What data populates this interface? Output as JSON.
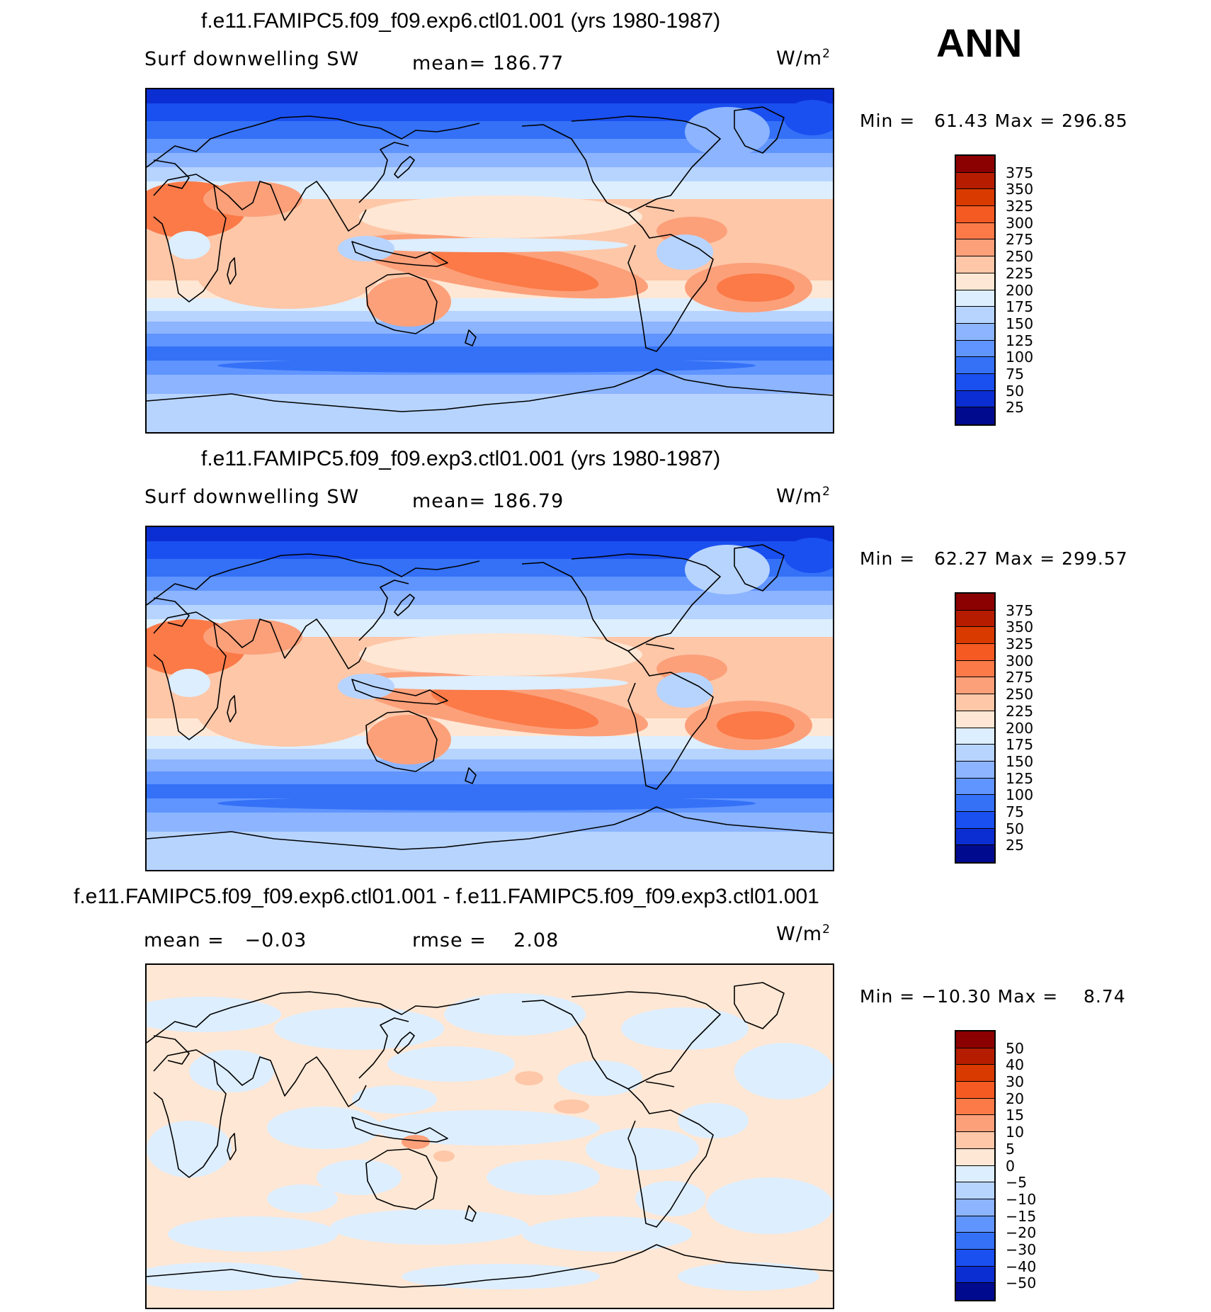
{
  "season": "ANN",
  "panels": [
    {
      "title": "f.e11.FAMIPC5.f09_f09.exp6.ctl01.001 (yrs 1980-1987)",
      "left_label": "Surf downwelling SW",
      "center_label": "mean= 186.77",
      "units": "W/m",
      "units_sup": "2",
      "minmax": "Min =   61.43 Max = 296.85",
      "variant": "a"
    },
    {
      "title": "f.e11.FAMIPC5.f09_f09.exp3.ctl01.001 (yrs 1980-1987)",
      "left_label": "Surf downwelling SW",
      "center_label": "mean= 186.79",
      "units": "W/m",
      "units_sup": "2",
      "minmax": "Min =   62.27 Max = 299.57",
      "variant": "b"
    },
    {
      "title": "f.e11.FAMIPC5.f09_f09.exp6.ctl01.001 - f.e11.FAMIPC5.f09_f09.exp3.ctl01.001",
      "left_label": "mean =   −0.03",
      "center_label": "rmse =    2.08",
      "units": "W/m",
      "units_sup": "2",
      "minmax": "Min = −10.30 Max =    8.74",
      "variant": "diff"
    }
  ],
  "colorbars": {
    "field": {
      "labels": [
        "375",
        "350",
        "325",
        "300",
        "275",
        "250",
        "225",
        "200",
        "175",
        "150",
        "125",
        "100",
        "75",
        "50",
        "25"
      ],
      "colors": [
        "#8b0000",
        "#b51c00",
        "#d83a00",
        "#f45a22",
        "#fb7a48",
        "#fca07a",
        "#fdc7a8",
        "#fee7d4",
        "#ddeeff",
        "#b7d4ff",
        "#8cb4ff",
        "#6094ff",
        "#3471f7",
        "#1a4ff0",
        "#0b2ed2",
        "#000a8e"
      ]
    },
    "diff": {
      "labels": [
        "50",
        "40",
        "30",
        "20",
        "15",
        "10",
        "5",
        "0",
        "−5",
        "−10",
        "−15",
        "−20",
        "−30",
        "−40",
        "−50"
      ],
      "colors": [
        "#8b0000",
        "#b51c00",
        "#d83a00",
        "#f45a22",
        "#fb7a48",
        "#fca07a",
        "#fdc7a8",
        "#fee7d4",
        "#ddeeff",
        "#b7d4ff",
        "#8cb4ff",
        "#6094ff",
        "#3471f7",
        "#1a4ff0",
        "#0b2ed2",
        "#000a8e"
      ]
    }
  },
  "chart_data": {
    "type": "heatmap",
    "projection": "cylindrical equidistant, centered on Pacific",
    "maps": [
      {
        "name": "exp6",
        "mean": 186.77,
        "min": 61.43,
        "max": 296.85,
        "contour_levels": [
          25,
          50,
          75,
          100,
          125,
          150,
          175,
          200,
          225,
          250,
          275,
          300,
          325,
          350,
          375
        ]
      },
      {
        "name": "exp3",
        "mean": 186.79,
        "min": 62.27,
        "max": 299.57,
        "contour_levels": [
          25,
          50,
          75,
          100,
          125,
          150,
          175,
          200,
          225,
          250,
          275,
          300,
          325,
          350,
          375
        ]
      },
      {
        "name": "exp6 - exp3",
        "mean": -0.03,
        "rmse": 2.08,
        "min": -10.3,
        "max": 8.74,
        "contour_levels": [
          -50,
          -40,
          -30,
          -20,
          -15,
          -10,
          -5,
          0,
          5,
          10,
          15,
          20,
          30,
          40,
          50
        ]
      }
    ]
  }
}
